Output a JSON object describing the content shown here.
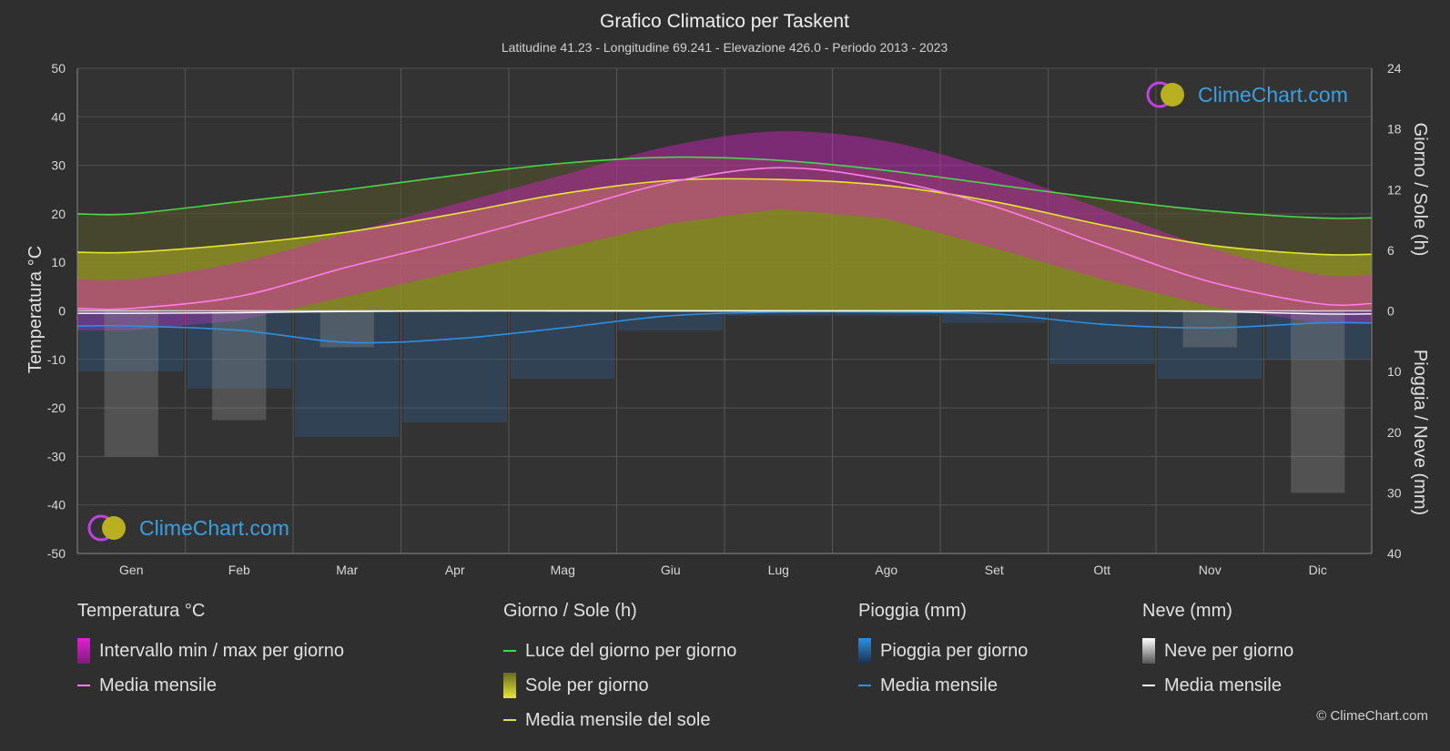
{
  "title": "Grafico Climatico per Taskent",
  "subtitle": "Latitudine 41.23 - Longitudine 69.241 - Elevazione 426.0 - Periodo 2013 - 2023",
  "logo_text": "ClimeChart.com",
  "copyright": "© ClimeChart.com",
  "colors": {
    "background": "#2f2f2f",
    "daylight": "#4cd44c",
    "sunshine_avg": "#e6e632",
    "temp_avg": "#ff7ee6",
    "rain_avg": "#2f8fe0",
    "snow_avg": "#ffffff",
    "temp_range": "#e020d0",
    "sunshine_fill": "#a8a820",
    "rain_bar": "#2a6aa8",
    "snow_bar": "#9a9a9a"
  },
  "legend": {
    "temperature": {
      "title": "Temperatura °C",
      "items": [
        "Intervallo min / max per giorno",
        "Media mensile"
      ]
    },
    "sun": {
      "title": "Giorno / Sole (h)",
      "items": [
        "Luce del giorno per giorno",
        "Sole per giorno",
        "Media mensile del sole"
      ]
    },
    "rain": {
      "title": "Pioggia (mm)",
      "items": [
        "Pioggia per giorno",
        "Media mensile"
      ]
    },
    "snow": {
      "title": "Neve (mm)",
      "items": [
        "Neve per giorno",
        "Media mensile"
      ]
    }
  },
  "chart_data": {
    "type": "line",
    "categories": [
      "Gen",
      "Feb",
      "Mar",
      "Apr",
      "Mag",
      "Giu",
      "Lug",
      "Ago",
      "Set",
      "Ott",
      "Nov",
      "Dic"
    ],
    "left_axis": {
      "label": "Temperatura °C",
      "range": [
        -50,
        50
      ],
      "ticks": [
        "50",
        "40",
        "30",
        "20",
        "10",
        "0",
        "-10",
        "-20",
        "-30",
        "-40",
        "-50"
      ]
    },
    "right_axis_top": {
      "label": "Giorno / Sole (h)",
      "range": [
        0,
        24
      ],
      "ticks": [
        "24",
        "18",
        "12",
        "6",
        "0"
      ]
    },
    "right_axis_bottom": {
      "label": "Pioggia / Neve (mm)",
      "range": [
        0,
        40
      ],
      "ticks": [
        "10",
        "20",
        "30",
        "40"
      ]
    },
    "grid": true,
    "series": [
      {
        "name": "Luce del giorno per giorno",
        "axis": "hours",
        "values": [
          9.6,
          10.8,
          12.0,
          13.4,
          14.6,
          15.2,
          14.9,
          13.9,
          12.5,
          11.1,
          9.9,
          9.2
        ]
      },
      {
        "name": "Media mensile del sole",
        "axis": "hours",
        "values": [
          5.8,
          6.6,
          7.8,
          9.6,
          11.6,
          12.9,
          13.0,
          12.4,
          10.8,
          8.5,
          6.5,
          5.6
        ]
      },
      {
        "name": "Media mensile",
        "axis": "temperature",
        "values": [
          0.5,
          3.0,
          9.0,
          14.5,
          20.5,
          26.5,
          29.5,
          27.0,
          21.5,
          13.5,
          6.0,
          1.5
        ]
      },
      {
        "name": "Pioggia media mensile",
        "axis": "precipitation",
        "values": [
          2.5,
          3.2,
          5.2,
          4.6,
          2.8,
          0.8,
          0.2,
          0.2,
          0.5,
          2.2,
          2.8,
          2.0
        ]
      },
      {
        "name": "Neve media mensile",
        "axis": "precipitation",
        "values": [
          0.4,
          0.3,
          0.1,
          0.0,
          0.0,
          0.0,
          0.0,
          0.0,
          0.0,
          0.0,
          0.1,
          0.5
        ]
      }
    ],
    "temperature_range": {
      "max": [
        6.5,
        10.0,
        16.0,
        22.0,
        28.0,
        34.0,
        37.0,
        35.0,
        29.0,
        21.0,
        13.0,
        7.5
      ],
      "min": [
        -4.0,
        -2.0,
        3.0,
        8.0,
        13.0,
        18.0,
        21.0,
        19.0,
        13.0,
        6.5,
        1.0,
        -2.5
      ]
    }
  }
}
